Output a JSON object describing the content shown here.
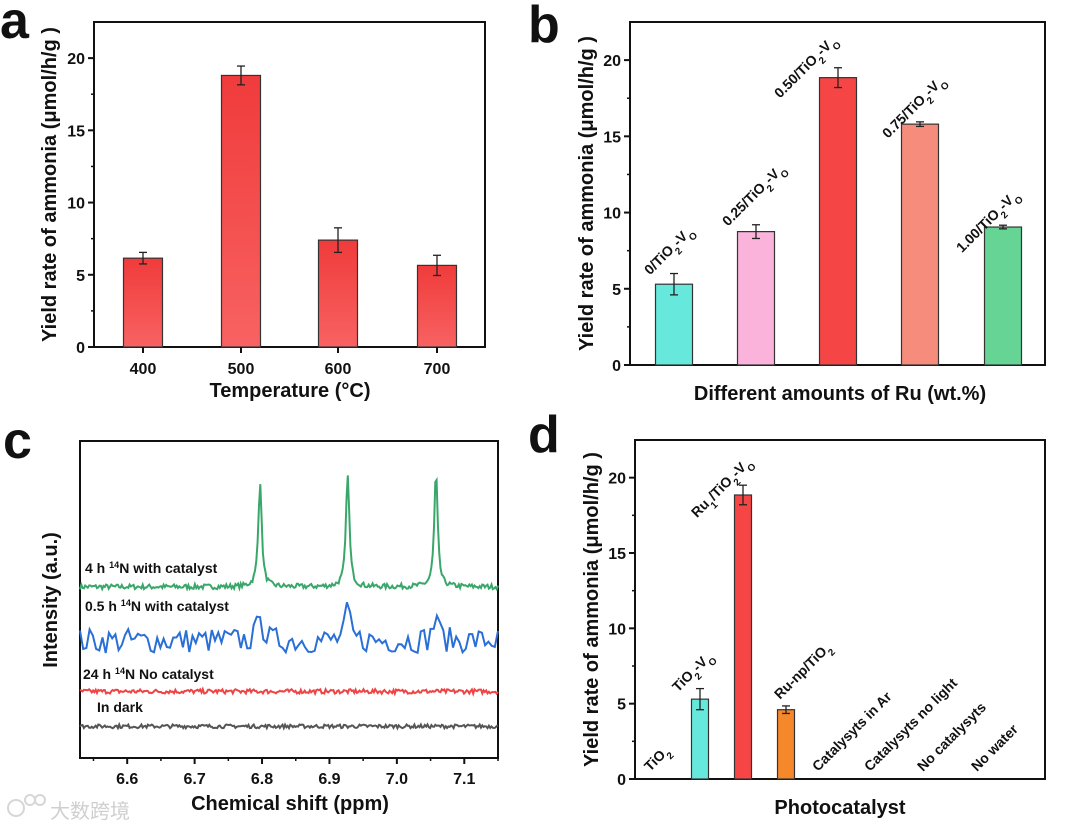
{
  "chart_data": [
    {
      "panel": "a",
      "type": "bar",
      "title": "",
      "xlabel": "Temperature (°C)",
      "ylabel": "Yield rate of ammonia (μmol/h/g )",
      "categories": [
        "400",
        "500",
        "600",
        "700"
      ],
      "values": [
        6.15,
        18.8,
        7.4,
        5.65
      ],
      "errors": [
        0.4,
        0.65,
        0.85,
        0.7
      ],
      "yticks": [
        "0",
        "5",
        "10",
        "15",
        "20"
      ],
      "ylim": [
        0,
        22.5
      ],
      "colors": [
        "#f2403f"
      ]
    },
    {
      "panel": "b",
      "type": "bar",
      "xlabel": "Different amounts of Ru (wt.%)",
      "ylabel": "Yield rate of ammonia (μmol/h/g )",
      "categories": [
        [
          [
            "0/TiO",
            ""
          ],
          [
            "2",
            "sub"
          ],
          [
            "-V",
            ""
          ],
          [
            "O",
            "sub"
          ]
        ],
        [
          [
            "0.25/TiO",
            ""
          ],
          [
            "2",
            "sub"
          ],
          [
            "-V",
            ""
          ],
          [
            "O",
            "sub"
          ]
        ],
        [
          [
            "0.50/TiO",
            ""
          ],
          [
            "2",
            "sub"
          ],
          [
            "-V",
            ""
          ],
          [
            "O",
            "sub"
          ]
        ],
        [
          [
            "0.75/TiO",
            ""
          ],
          [
            "2",
            "sub"
          ],
          [
            "-V",
            ""
          ],
          [
            "O",
            "sub"
          ]
        ],
        [
          [
            "1.00/TiO",
            ""
          ],
          [
            "2",
            "sub"
          ],
          [
            "-V",
            ""
          ],
          [
            "O",
            "sub"
          ]
        ]
      ],
      "values": [
        5.3,
        8.75,
        18.85,
        15.8,
        9.05
      ],
      "errors": [
        0.7,
        0.45,
        0.65,
        0.15,
        0.12
      ],
      "yticks": [
        "0",
        "5",
        "10",
        "15",
        "20"
      ],
      "ylim": [
        0,
        22.5
      ],
      "colors": [
        "#66e8dc",
        "#fbb3dc",
        "#f54545",
        "#f58c7c",
        "#66d494"
      ]
    },
    {
      "panel": "c",
      "type": "line",
      "xlabel": "Chemical shift (ppm)",
      "ylabel": "Intensity (a.u.)",
      "xticks": [
        "6.6",
        "6.7",
        "6.8",
        "6.9",
        "7.0",
        "7.1"
      ],
      "xlim": [
        6.53,
        7.15
      ],
      "ylim": [
        0,
        100
      ],
      "peaks_ppm": [
        6.797,
        6.927,
        7.058
      ],
      "series": [
        {
          "name": [
            [
              "4 h ",
              ""
            ],
            [
              "14",
              "sup"
            ],
            [
              "N  with catalyst",
              ""
            ]
          ],
          "color": "#3aa76a",
          "baseline": 54,
          "peak_heights": [
            33.5,
            36,
            36.3
          ],
          "noise": 0.8
        },
        {
          "name": [
            [
              "0.5 h ",
              ""
            ],
            [
              "14",
              "sup"
            ],
            [
              "N with catalyst",
              ""
            ]
          ],
          "color": "#2a6fd6",
          "baseline": 37,
          "peak_heights": [
            11,
            11,
            10
          ],
          "noise": 4
        },
        {
          "name": [
            [
              "24 h ",
              ""
            ],
            [
              "14",
              "sup"
            ],
            [
              "N No catalyst",
              ""
            ]
          ],
          "color": "#ef4444",
          "baseline": 21,
          "peak_heights": [
            0,
            0,
            0
          ],
          "noise": 0.7
        },
        {
          "name": [
            [
              "In dark",
              ""
            ]
          ],
          "color": "#555555",
          "baseline": 10,
          "peak_heights": [
            0,
            0,
            0
          ],
          "noise": 0.6
        }
      ]
    },
    {
      "panel": "d",
      "type": "bar",
      "xlabel": "Photocatalyst",
      "ylabel": "Yield rate of ammonia (μmol/h/g )",
      "categories": [
        [
          [
            "TiO",
            ""
          ],
          [
            "2",
            "sub"
          ]
        ],
        [
          [
            "TiO",
            ""
          ],
          [
            "2",
            "sub"
          ],
          [
            "-V",
            ""
          ],
          [
            "O",
            "sub"
          ]
        ],
        [
          [
            "Ru",
            ""
          ],
          [
            "1",
            "sub"
          ],
          [
            "/TiO",
            ""
          ],
          [
            "2",
            "sub"
          ],
          [
            "-V",
            ""
          ],
          [
            "O",
            "sub"
          ]
        ],
        [
          [
            "Ru-np/TiO",
            ""
          ],
          [
            "2",
            "sub"
          ]
        ],
        [
          [
            "Catalysyts in Ar",
            ""
          ]
        ],
        [
          [
            "Catalysyts no light",
            ""
          ]
        ],
        [
          [
            "No catalysyts",
            ""
          ]
        ],
        [
          [
            "No water",
            ""
          ]
        ]
      ],
      "values": [
        0,
        5.3,
        18.85,
        4.6,
        0,
        0,
        0,
        0
      ],
      "errors": [
        0,
        0.7,
        0.65,
        0.25,
        0,
        0,
        0,
        0
      ],
      "yticks": [
        "0",
        "5",
        "10",
        "15",
        "20"
      ],
      "ylim": [
        0,
        22.5
      ],
      "colors": [
        "#66e8dc",
        "#66e8dc",
        "#f54545",
        "#f5882a",
        "#cccccc",
        "#cccccc",
        "#cccccc",
        "#cccccc"
      ]
    }
  ],
  "panel_labels": [
    "a",
    "b",
    "c",
    "d"
  ],
  "watermark": "大数跨境"
}
